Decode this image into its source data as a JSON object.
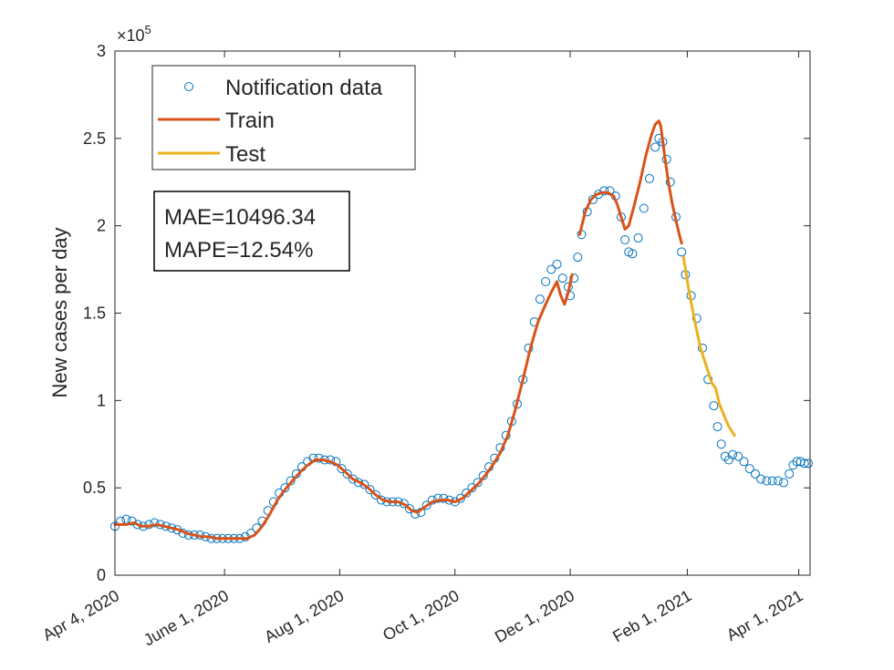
{
  "chart_data": {
    "type": "line",
    "ylabel": "New cases per day",
    "y_multiplier_base": "×10",
    "y_multiplier_exp": "5",
    "ylim": [
      0,
      3
    ],
    "yticks": [
      0,
      0.5,
      1,
      1.5,
      2,
      2.5,
      3
    ],
    "ytick_labels": [
      "0",
      "0.5",
      "1",
      "1.5",
      "2",
      "2.5",
      "3"
    ],
    "x_unit": "days since Apr 4, 2020",
    "xlim": [
      0,
      368
    ],
    "xticks": [
      0,
      58,
      119,
      180,
      241,
      303,
      362
    ],
    "xtick_labels": [
      "Apr 4, 2020",
      "June 1, 2020",
      "Aug 1, 2020",
      "Oct 1, 2020",
      "Dec 1, 2020",
      "Feb 1, 2021",
      "Apr 1, 2021"
    ],
    "legend": {
      "position": "top-left",
      "entries": [
        {
          "label": "Notification data",
          "kind": "marker",
          "color": "#0072BD"
        },
        {
          "label": "Train",
          "kind": "line",
          "color": "#D95319"
        },
        {
          "label": "Test",
          "kind": "line",
          "color": "#EDB120"
        }
      ]
    },
    "metrics": {
      "mae": "MAE=10496.34",
      "mape": "MAPE=12.54%"
    },
    "series": [
      {
        "name": "Notification data",
        "style": "markers",
        "color": "#0072BD",
        "points": [
          [
            0,
            0.28
          ],
          [
            3,
            0.31
          ],
          [
            6,
            0.32
          ],
          [
            9,
            0.31
          ],
          [
            12,
            0.29
          ],
          [
            15,
            0.28
          ],
          [
            18,
            0.29
          ],
          [
            21,
            0.3
          ],
          [
            24,
            0.29
          ],
          [
            27,
            0.28
          ],
          [
            30,
            0.27
          ],
          [
            33,
            0.26
          ],
          [
            36,
            0.24
          ],
          [
            39,
            0.23
          ],
          [
            42,
            0.23
          ],
          [
            45,
            0.23
          ],
          [
            48,
            0.22
          ],
          [
            51,
            0.21
          ],
          [
            54,
            0.21
          ],
          [
            57,
            0.21
          ],
          [
            60,
            0.21
          ],
          [
            63,
            0.21
          ],
          [
            66,
            0.21
          ],
          [
            69,
            0.22
          ],
          [
            72,
            0.24
          ],
          [
            75,
            0.27
          ],
          [
            78,
            0.31
          ],
          [
            81,
            0.37
          ],
          [
            84,
            0.42
          ],
          [
            87,
            0.47
          ],
          [
            90,
            0.5
          ],
          [
            93,
            0.54
          ],
          [
            96,
            0.58
          ],
          [
            99,
            0.62
          ],
          [
            102,
            0.65
          ],
          [
            105,
            0.67
          ],
          [
            108,
            0.67
          ],
          [
            111,
            0.66
          ],
          [
            114,
            0.66
          ],
          [
            117,
            0.65
          ],
          [
            120,
            0.61
          ],
          [
            123,
            0.58
          ],
          [
            126,
            0.55
          ],
          [
            129,
            0.53
          ],
          [
            132,
            0.52
          ],
          [
            135,
            0.49
          ],
          [
            138,
            0.46
          ],
          [
            141,
            0.43
          ],
          [
            144,
            0.42
          ],
          [
            147,
            0.42
          ],
          [
            150,
            0.42
          ],
          [
            153,
            0.41
          ],
          [
            156,
            0.38
          ],
          [
            159,
            0.35
          ],
          [
            162,
            0.36
          ],
          [
            165,
            0.4
          ],
          [
            168,
            0.43
          ],
          [
            171,
            0.44
          ],
          [
            174,
            0.44
          ],
          [
            177,
            0.43
          ],
          [
            180,
            0.42
          ],
          [
            183,
            0.44
          ],
          [
            186,
            0.47
          ],
          [
            189,
            0.5
          ],
          [
            192,
            0.53
          ],
          [
            195,
            0.57
          ],
          [
            198,
            0.62
          ],
          [
            201,
            0.67
          ],
          [
            204,
            0.73
          ],
          [
            207,
            0.8
          ],
          [
            210,
            0.88
          ],
          [
            213,
            0.98
          ],
          [
            216,
            1.12
          ],
          [
            219,
            1.3
          ],
          [
            222,
            1.45
          ],
          [
            225,
            1.58
          ],
          [
            228,
            1.68
          ],
          [
            231,
            1.75
          ],
          [
            234,
            1.78
          ],
          [
            237,
            1.7
          ],
          [
            240,
            1.65
          ],
          [
            241,
            1.6
          ],
          [
            243,
            1.7
          ],
          [
            245,
            1.82
          ],
          [
            247,
            1.95
          ],
          [
            250,
            2.08
          ],
          [
            253,
            2.15
          ],
          [
            256,
            2.18
          ],
          [
            259,
            2.2
          ],
          [
            262,
            2.2
          ],
          [
            265,
            2.17
          ],
          [
            268,
            2.05
          ],
          [
            270,
            1.92
          ],
          [
            272,
            1.85
          ],
          [
            274,
            1.84
          ],
          [
            277,
            1.93
          ],
          [
            280,
            2.1
          ],
          [
            283,
            2.27
          ],
          [
            286,
            2.45
          ],
          [
            288,
            2.5
          ],
          [
            290,
            2.48
          ],
          [
            292,
            2.38
          ],
          [
            294,
            2.25
          ],
          [
            297,
            2.05
          ],
          [
            300,
            1.85
          ],
          [
            302,
            1.72
          ],
          [
            305,
            1.6
          ],
          [
            308,
            1.47
          ],
          [
            311,
            1.3
          ],
          [
            314,
            1.12
          ],
          [
            317,
            0.97
          ],
          [
            319,
            0.85
          ],
          [
            321,
            0.75
          ],
          [
            323,
            0.68
          ],
          [
            325,
            0.66
          ],
          [
            327,
            0.69
          ],
          [
            330,
            0.68
          ],
          [
            333,
            0.65
          ],
          [
            336,
            0.61
          ],
          [
            339,
            0.58
          ],
          [
            342,
            0.55
          ],
          [
            345,
            0.54
          ],
          [
            348,
            0.54
          ],
          [
            351,
            0.54
          ],
          [
            354,
            0.53
          ],
          [
            357,
            0.58
          ],
          [
            359,
            0.63
          ],
          [
            361,
            0.65
          ],
          [
            363,
            0.65
          ],
          [
            365,
            0.64
          ],
          [
            367,
            0.64
          ]
        ]
      },
      {
        "name": "Train",
        "style": "line",
        "color": "#D95319",
        "points": [
          [
            0,
            0.29
          ],
          [
            6,
            0.29
          ],
          [
            10,
            0.3
          ],
          [
            14,
            0.28
          ],
          [
            18,
            0.28
          ],
          [
            22,
            0.29
          ],
          [
            26,
            0.28
          ],
          [
            30,
            0.27
          ],
          [
            34,
            0.26
          ],
          [
            38,
            0.24
          ],
          [
            42,
            0.23
          ],
          [
            46,
            0.22
          ],
          [
            50,
            0.22
          ],
          [
            54,
            0.21
          ],
          [
            58,
            0.21
          ],
          [
            62,
            0.21
          ],
          [
            66,
            0.21
          ],
          [
            70,
            0.21
          ],
          [
            74,
            0.23
          ],
          [
            78,
            0.28
          ],
          [
            82,
            0.35
          ],
          [
            86,
            0.43
          ],
          [
            90,
            0.49
          ],
          [
            94,
            0.54
          ],
          [
            98,
            0.59
          ],
          [
            102,
            0.63
          ],
          [
            106,
            0.66
          ],
          [
            110,
            0.66
          ],
          [
            114,
            0.65
          ],
          [
            118,
            0.63
          ],
          [
            122,
            0.59
          ],
          [
            126,
            0.55
          ],
          [
            130,
            0.53
          ],
          [
            134,
            0.5
          ],
          [
            138,
            0.46
          ],
          [
            142,
            0.43
          ],
          [
            146,
            0.42
          ],
          [
            150,
            0.42
          ],
          [
            154,
            0.4
          ],
          [
            157,
            0.37
          ],
          [
            160,
            0.36
          ],
          [
            164,
            0.39
          ],
          [
            168,
            0.42
          ],
          [
            172,
            0.43
          ],
          [
            176,
            0.43
          ],
          [
            180,
            0.42
          ],
          [
            184,
            0.44
          ],
          [
            188,
            0.48
          ],
          [
            192,
            0.52
          ],
          [
            196,
            0.57
          ],
          [
            200,
            0.63
          ],
          [
            204,
            0.7
          ],
          [
            208,
            0.8
          ],
          [
            212,
            0.95
          ],
          [
            216,
            1.12
          ],
          [
            220,
            1.3
          ],
          [
            224,
            1.45
          ],
          [
            228,
            1.55
          ],
          [
            231,
            1.62
          ],
          [
            234,
            1.68
          ],
          [
            236,
            1.6
          ],
          [
            238,
            1.55
          ],
          [
            240,
            1.62
          ],
          [
            242,
            1.72
          ]
        ]
      },
      {
        "name": "Train",
        "style": "line",
        "color": "#D95319",
        "points": [
          [
            246,
            1.95
          ],
          [
            249,
            2.08
          ],
          [
            252,
            2.15
          ],
          [
            255,
            2.18
          ],
          [
            258,
            2.19
          ],
          [
            261,
            2.19
          ],
          [
            264,
            2.17
          ],
          [
            266,
            2.12
          ],
          [
            268,
            2.05
          ],
          [
            270,
            1.98
          ],
          [
            272,
            2.0
          ],
          [
            275,
            2.12
          ],
          [
            278,
            2.25
          ],
          [
            281,
            2.4
          ],
          [
            284,
            2.52
          ],
          [
            286,
            2.58
          ],
          [
            288,
            2.6
          ],
          [
            289,
            2.57
          ],
          [
            291,
            2.4
          ],
          [
            293,
            2.25
          ],
          [
            295,
            2.13
          ],
          [
            297,
            2.03
          ],
          [
            299,
            1.94
          ],
          [
            300,
            1.9
          ]
        ]
      },
      {
        "name": "Test",
        "style": "line",
        "color": "#EDB120",
        "points": [
          [
            301,
            1.82
          ],
          [
            304,
            1.62
          ],
          [
            307,
            1.45
          ],
          [
            310,
            1.3
          ],
          [
            313,
            1.2
          ],
          [
            316,
            1.1
          ],
          [
            318,
            1.07
          ],
          [
            320,
            0.98
          ],
          [
            323,
            0.9
          ],
          [
            325,
            0.85
          ],
          [
            328,
            0.8
          ]
        ]
      }
    ]
  }
}
